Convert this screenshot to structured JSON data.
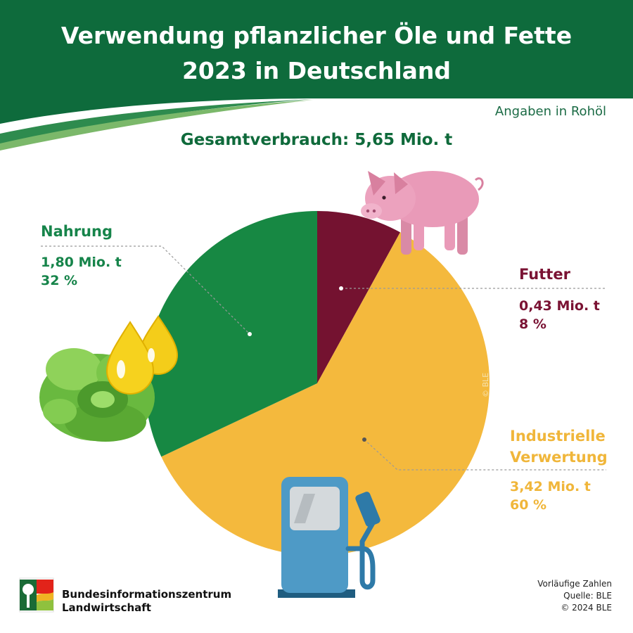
{
  "header": {
    "title_line1": "Verwendung pflanzlicher Öle und Fette",
    "title_line2": "2023 in Deutschland",
    "unit_note": "Angaben in Rohöl",
    "total": "Gesamtverbrauch: 5,65 Mio. t"
  },
  "colors": {
    "header_green": "#0e6b3c",
    "nahrung": "#178843",
    "futter": "#741230",
    "industrie": "#f4b93d"
  },
  "chart_data": {
    "type": "pie",
    "categories": [
      "Futter",
      "Industrielle Verwertung",
      "Nahrung"
    ],
    "values": [
      0.43,
      3.42,
      1.8
    ],
    "percent": [
      8,
      60,
      32
    ],
    "unit": "Mio. t",
    "colors": [
      "#741230",
      "#f4b93d",
      "#178843"
    ],
    "labels": [
      {
        "name": "Futter",
        "value": "0,43 Mio. t",
        "percent": "8 %"
      },
      {
        "name_lines": [
          "Industrielle",
          "Verwertung"
        ],
        "value": "3,42 Mio. t",
        "percent": "60 %"
      },
      {
        "name": "Nahrung",
        "value": "1,80 Mio. t",
        "percent": "32 %"
      }
    ]
  },
  "icons": [
    "pig-icon",
    "oil-drops-icon",
    "lettuce-icon",
    "fuel-pump-icon",
    "ble-logo-icon"
  ],
  "footer": {
    "brand_line1": "Bundesinformationszentrum",
    "brand_line2": "Landwirtschaft",
    "source_line1": "Vorläufige Zahlen",
    "source_line2": "Quelle: BLE",
    "source_line3": "© 2024 BLE",
    "watermark": "© BLE"
  }
}
